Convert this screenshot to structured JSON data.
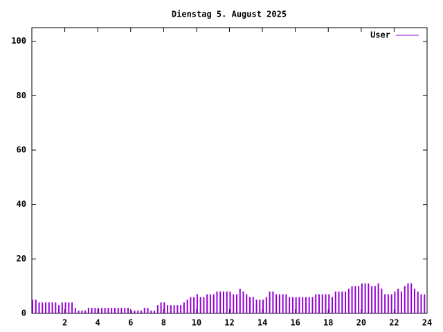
{
  "chart_data": {
    "type": "impulse",
    "title": "Dienstag 5. August 2025",
    "x": [
      0,
      0.2,
      0.4,
      0.6,
      0.8,
      1,
      1.2,
      1.4,
      1.6,
      1.8,
      2,
      2.2,
      2.4,
      2.6,
      2.8,
      3,
      3.2,
      3.4,
      3.6,
      3.8,
      4,
      4.2,
      4.4,
      4.6,
      4.8,
      5,
      5.2,
      5.4,
      5.6,
      5.8,
      6,
      6.2,
      6.4,
      6.6,
      6.8,
      7,
      7.2,
      7.4,
      7.6,
      7.8,
      8,
      8.2,
      8.4,
      8.6,
      8.8,
      9,
      9.2,
      9.4,
      9.6,
      9.8,
      10,
      10.2,
      10.4,
      10.6,
      10.8,
      11,
      11.2,
      11.4,
      11.6,
      11.8,
      12,
      12.2,
      12.4,
      12.6,
      12.8,
      13,
      13.2,
      13.4,
      13.6,
      13.8,
      14,
      14.2,
      14.4,
      14.6,
      14.8,
      15,
      15.2,
      15.4,
      15.6,
      15.8,
      16,
      16.2,
      16.4,
      16.6,
      16.8,
      17,
      17.2,
      17.4,
      17.6,
      17.8,
      18,
      18.2,
      18.4,
      18.6,
      18.8,
      19,
      19.2,
      19.4,
      19.6,
      19.8,
      20,
      20.2,
      20.4,
      20.6,
      20.8,
      21,
      21.2,
      21.4,
      21.6,
      21.8,
      22,
      22.2,
      22.4,
      22.6,
      22.8,
      23,
      23.2,
      23.4,
      23.6,
      23.8
    ],
    "series": [
      {
        "name": "User",
        "color": "#9400d3",
        "values": [
          5,
          5,
          4,
          4,
          4,
          4,
          4,
          4,
          3,
          4,
          4,
          4,
          4,
          2,
          1,
          1,
          1,
          2,
          2,
          2,
          2,
          2,
          2,
          2,
          2,
          2,
          2,
          2,
          2,
          2,
          1,
          1,
          1,
          1,
          2,
          2,
          1,
          1,
          3,
          4,
          4,
          3,
          3,
          3,
          3,
          3,
          4,
          5,
          6,
          6,
          7,
          6,
          6,
          7,
          7,
          7,
          8,
          8,
          8,
          8,
          8,
          7,
          7,
          9,
          8,
          7,
          6,
          6,
          5,
          5,
          5,
          6,
          8,
          8,
          7,
          7,
          7,
          7,
          6,
          6,
          6,
          6,
          6,
          6,
          6,
          6,
          7,
          7,
          7,
          7,
          7,
          6,
          8,
          8,
          8,
          8,
          9,
          10,
          10,
          10,
          11,
          11,
          11,
          10,
          10,
          11,
          9,
          7,
          7,
          7,
          8,
          9,
          8,
          10,
          11,
          11,
          9,
          8,
          7,
          7
        ]
      }
    ],
    "xlim": [
      0,
      24
    ],
    "xticks": [
      2,
      4,
      6,
      8,
      10,
      12,
      14,
      16,
      18,
      20,
      22,
      24
    ],
    "ylim": [
      0,
      105
    ],
    "yticks": [
      0,
      20,
      40,
      60,
      80,
      100
    ],
    "legend": "top-right"
  }
}
